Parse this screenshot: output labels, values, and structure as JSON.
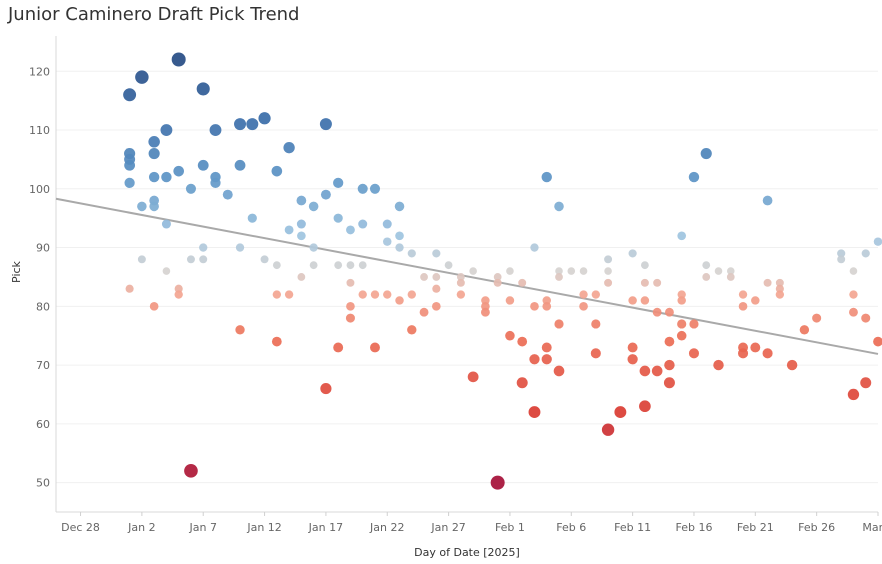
{
  "chart_data": {
    "type": "scatter",
    "title": "Junior Caminero Draft Pick Trend",
    "xlabel": "Day of Date [2025]",
    "ylabel": "Pick",
    "x_unit": "days after Dec 28, 2024",
    "xlim": [
      -2,
      65
    ],
    "ylim": [
      45,
      126
    ],
    "x_ticks": [
      {
        "label": "Dec 28",
        "value": 0
      },
      {
        "label": "Jan 2",
        "value": 5
      },
      {
        "label": "Jan 7",
        "value": 10
      },
      {
        "label": "Jan 12",
        "value": 15
      },
      {
        "label": "Jan 17",
        "value": 20
      },
      {
        "label": "Jan 22",
        "value": 25
      },
      {
        "label": "Jan 27",
        "value": 30
      },
      {
        "label": "Feb 1",
        "value": 35
      },
      {
        "label": "Feb 6",
        "value": 40
      },
      {
        "label": "Feb 11",
        "value": 45
      },
      {
        "label": "Feb 16",
        "value": 50
      },
      {
        "label": "Feb 21",
        "value": 55
      },
      {
        "label": "Feb 26",
        "value": 60
      },
      {
        "label": "Mar 3",
        "value": 65
      }
    ],
    "y_ticks": [
      50,
      60,
      70,
      80,
      90,
      100,
      110,
      120
    ],
    "trend_line": {
      "x": [
        -2,
        65
      ],
      "y": [
        98.3,
        71.9
      ]
    },
    "color_scale": "diverging: high pick = dark blue, ~86 = grey, low pick = dark red",
    "points": [
      [
        4,
        116
      ],
      [
        4,
        106
      ],
      [
        4,
        105
      ],
      [
        4,
        104
      ],
      [
        4,
        101
      ],
      [
        4,
        83
      ],
      [
        5,
        119
      ],
      [
        5,
        97
      ],
      [
        5,
        88
      ],
      [
        6,
        108
      ],
      [
        6,
        106
      ],
      [
        6,
        102
      ],
      [
        6,
        98
      ],
      [
        6,
        97
      ],
      [
        6,
        80
      ],
      [
        7,
        110
      ],
      [
        7,
        102
      ],
      [
        7,
        94
      ],
      [
        7,
        86
      ],
      [
        8,
        122
      ],
      [
        8,
        103
      ],
      [
        8,
        83
      ],
      [
        8,
        82
      ],
      [
        9,
        100
      ],
      [
        9,
        88
      ],
      [
        9,
        52
      ],
      [
        10,
        117
      ],
      [
        10,
        104
      ],
      [
        10,
        90
      ],
      [
        10,
        88
      ],
      [
        11,
        110
      ],
      [
        11,
        102
      ],
      [
        11,
        101
      ],
      [
        12,
        99
      ],
      [
        13,
        111
      ],
      [
        13,
        104
      ],
      [
        13,
        90
      ],
      [
        13,
        76
      ],
      [
        14,
        111
      ],
      [
        14,
        95
      ],
      [
        15,
        112
      ],
      [
        15,
        88
      ],
      [
        16,
        103
      ],
      [
        16,
        87
      ],
      [
        16,
        82
      ],
      [
        16,
        74
      ],
      [
        17,
        107
      ],
      [
        17,
        93
      ],
      [
        17,
        82
      ],
      [
        18,
        98
      ],
      [
        18,
        94
      ],
      [
        18,
        92
      ],
      [
        18,
        85
      ],
      [
        19,
        97
      ],
      [
        19,
        90
      ],
      [
        19,
        87
      ],
      [
        20,
        111
      ],
      [
        20,
        99
      ],
      [
        20,
        66
      ],
      [
        21,
        101
      ],
      [
        21,
        95
      ],
      [
        21,
        87
      ],
      [
        21,
        73
      ],
      [
        22,
        93
      ],
      [
        22,
        87
      ],
      [
        22,
        84
      ],
      [
        22,
        80
      ],
      [
        22,
        78
      ],
      [
        23,
        100
      ],
      [
        23,
        94
      ],
      [
        23,
        87
      ],
      [
        23,
        82
      ],
      [
        24,
        100
      ],
      [
        24,
        82
      ],
      [
        24,
        73
      ],
      [
        25,
        94
      ],
      [
        25,
        91
      ],
      [
        25,
        82
      ],
      [
        26,
        97
      ],
      [
        26,
        92
      ],
      [
        26,
        90
      ],
      [
        26,
        81
      ],
      [
        27,
        89
      ],
      [
        27,
        82
      ],
      [
        27,
        76
      ],
      [
        28,
        85
      ],
      [
        28,
        79
      ],
      [
        29,
        89
      ],
      [
        29,
        85
      ],
      [
        29,
        83
      ],
      [
        29,
        80
      ],
      [
        30,
        87
      ],
      [
        31,
        85
      ],
      [
        31,
        84
      ],
      [
        31,
        82
      ],
      [
        32,
        86
      ],
      [
        32,
        68
      ],
      [
        33,
        81
      ],
      [
        33,
        80
      ],
      [
        33,
        79
      ],
      [
        34,
        85
      ],
      [
        34,
        84
      ],
      [
        34,
        50
      ],
      [
        35,
        86
      ],
      [
        35,
        81
      ],
      [
        35,
        75
      ],
      [
        36,
        84
      ],
      [
        36,
        74
      ],
      [
        36,
        67
      ],
      [
        37,
        90
      ],
      [
        37,
        80
      ],
      [
        37,
        71
      ],
      [
        37,
        62
      ],
      [
        38,
        102
      ],
      [
        38,
        81
      ],
      [
        38,
        80
      ],
      [
        38,
        73
      ],
      [
        38,
        71
      ],
      [
        39,
        97
      ],
      [
        39,
        86
      ],
      [
        39,
        85
      ],
      [
        39,
        77
      ],
      [
        39,
        69
      ],
      [
        40,
        86
      ],
      [
        41,
        86
      ],
      [
        41,
        82
      ],
      [
        41,
        80
      ],
      [
        42,
        82
      ],
      [
        42,
        77
      ],
      [
        42,
        72
      ],
      [
        43,
        88
      ],
      [
        43,
        86
      ],
      [
        43,
        84
      ],
      [
        43,
        59
      ],
      [
        44,
        62
      ],
      [
        45,
        89
      ],
      [
        45,
        81
      ],
      [
        45,
        73
      ],
      [
        45,
        71
      ],
      [
        46,
        87
      ],
      [
        46,
        84
      ],
      [
        46,
        81
      ],
      [
        46,
        69
      ],
      [
        46,
        63
      ],
      [
        47,
        84
      ],
      [
        47,
        79
      ],
      [
        47,
        69
      ],
      [
        48,
        79
      ],
      [
        48,
        74
      ],
      [
        48,
        70
      ],
      [
        48,
        67
      ],
      [
        49,
        92
      ],
      [
        49,
        82
      ],
      [
        49,
        81
      ],
      [
        49,
        77
      ],
      [
        49,
        75
      ],
      [
        50,
        102
      ],
      [
        50,
        77
      ],
      [
        50,
        72
      ],
      [
        51,
        106
      ],
      [
        51,
        87
      ],
      [
        51,
        85
      ],
      [
        52,
        86
      ],
      [
        52,
        70
      ],
      [
        53,
        86
      ],
      [
        53,
        85
      ],
      [
        54,
        82
      ],
      [
        54,
        80
      ],
      [
        54,
        73
      ],
      [
        54,
        72
      ],
      [
        55,
        81
      ],
      [
        55,
        73
      ],
      [
        56,
        98
      ],
      [
        56,
        84
      ],
      [
        56,
        72
      ],
      [
        57,
        84
      ],
      [
        57,
        83
      ],
      [
        57,
        82
      ],
      [
        58,
        70
      ],
      [
        59,
        76
      ],
      [
        60,
        78
      ],
      [
        62,
        89
      ],
      [
        62,
        88
      ],
      [
        63,
        86
      ],
      [
        63,
        82
      ],
      [
        63,
        79
      ],
      [
        63,
        65
      ],
      [
        64,
        89
      ],
      [
        64,
        78
      ],
      [
        64,
        67
      ],
      [
        65,
        91
      ],
      [
        65,
        74
      ]
    ]
  }
}
